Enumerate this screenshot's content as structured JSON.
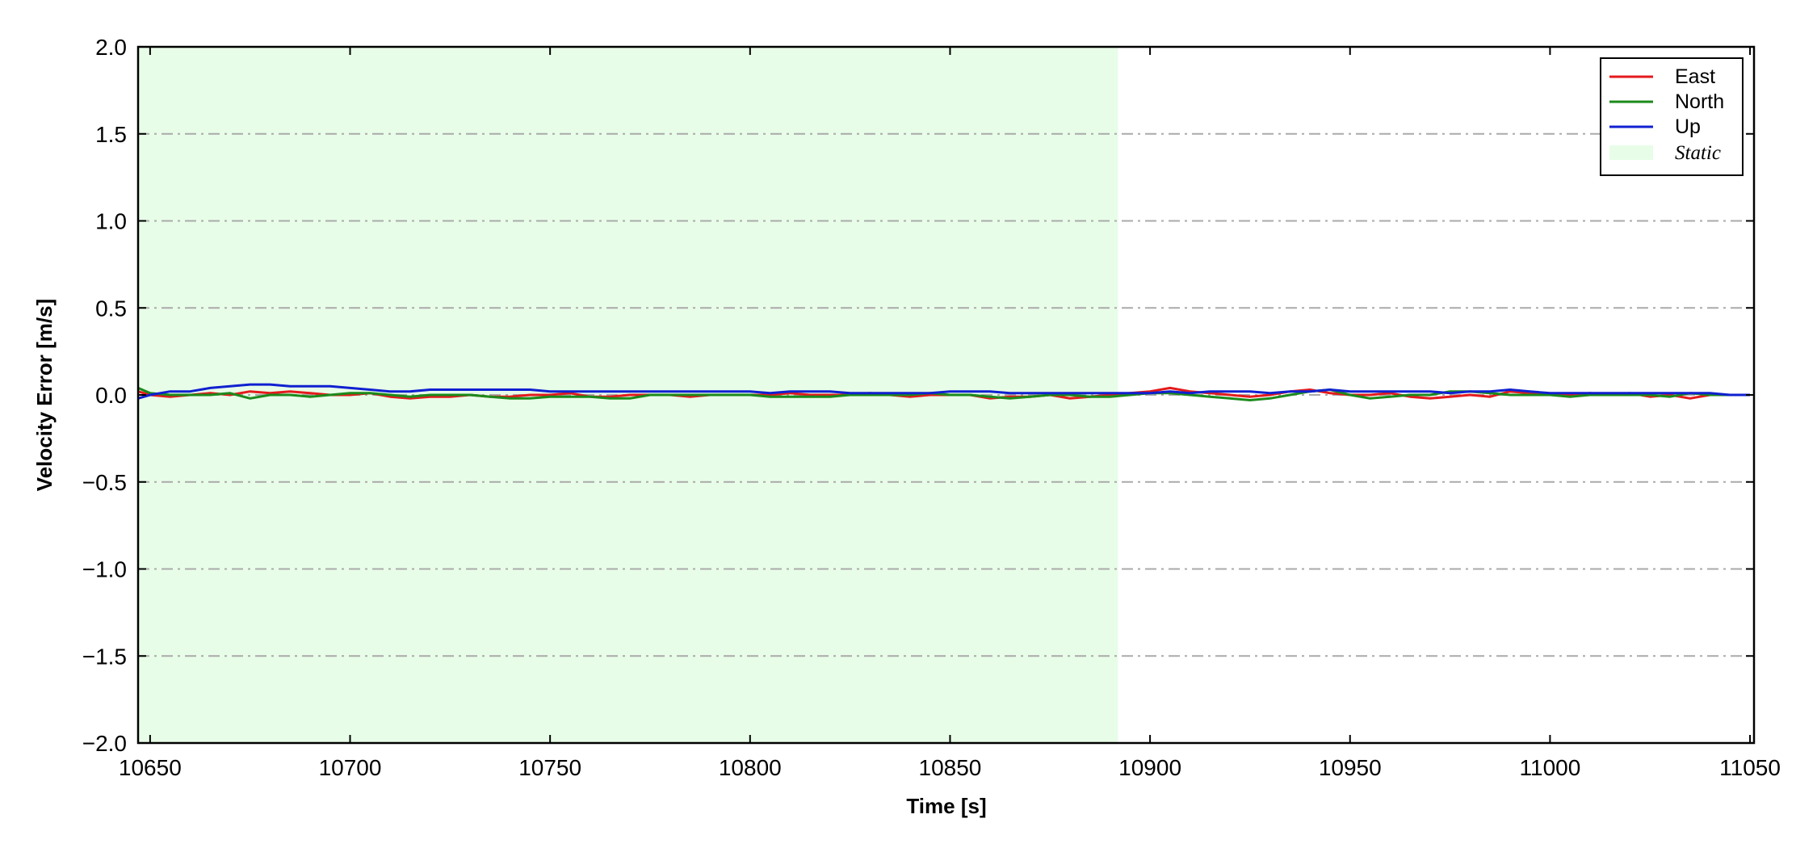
{
  "chart_data": {
    "type": "line",
    "title": "",
    "xlabel": "Time [s]",
    "ylabel": "Velocity Error [m/s]",
    "xlim": [
      10647,
      11051
    ],
    "ylim": [
      -2.0,
      2.0
    ],
    "xticks": [
      10650,
      10700,
      10750,
      10800,
      10850,
      10900,
      10950,
      11000,
      11050
    ],
    "xtick_labels": [
      "10650",
      "10700",
      "10750",
      "10800",
      "10850",
      "10900",
      "10950",
      "11000",
      "11050"
    ],
    "yticks": [
      2.0,
      1.5,
      1.0,
      0.5,
      0.0,
      -0.5,
      -1.0,
      -1.5,
      -2.0
    ],
    "ytick_labels": [
      "2.0",
      "1.5",
      "1.0",
      "0.5",
      "0.0",
      "−0.5",
      "−1.0",
      "−1.5",
      "−2.0"
    ],
    "grid": "horizontal dash-dot",
    "legend_position": "top-right",
    "static_region": {
      "label": "Static",
      "x_start": 10647,
      "x_end": 10892,
      "color": "#e8fde8"
    },
    "x": [
      10647,
      10650,
      10655,
      10660,
      10665,
      10670,
      10675,
      10680,
      10685,
      10690,
      10695,
      10700,
      10705,
      10710,
      10715,
      10720,
      10725,
      10730,
      10735,
      10740,
      10745,
      10750,
      10755,
      10760,
      10765,
      10770,
      10775,
      10780,
      10785,
      10790,
      10795,
      10800,
      10805,
      10810,
      10815,
      10820,
      10825,
      10830,
      10835,
      10840,
      10845,
      10850,
      10855,
      10860,
      10865,
      10870,
      10875,
      10880,
      10885,
      10890,
      10895,
      10900,
      10905,
      10910,
      10915,
      10920,
      10925,
      10930,
      10935,
      10940,
      10945,
      10950,
      10955,
      10960,
      10965,
      10970,
      10975,
      10980,
      10985,
      10990,
      10995,
      11000,
      11005,
      11010,
      11015,
      11020,
      11025,
      11030,
      11035,
      11040,
      11045,
      11050
    ],
    "series": [
      {
        "name": "East",
        "color": "#e41a1c",
        "values": [
          0.02,
          0.0,
          -0.01,
          0.0,
          0.01,
          0.0,
          0.02,
          0.01,
          0.02,
          0.01,
          0.0,
          0.0,
          0.01,
          -0.01,
          -0.02,
          -0.01,
          -0.01,
          0.0,
          -0.01,
          -0.01,
          0.0,
          0.0,
          0.01,
          -0.01,
          -0.01,
          0.0,
          0.0,
          0.0,
          -0.01,
          0.0,
          0.0,
          0.0,
          0.0,
          0.01,
          0.0,
          0.0,
          0.0,
          0.01,
          0.0,
          -0.01,
          0.0,
          0.0,
          0.0,
          -0.02,
          -0.01,
          -0.01,
          0.0,
          -0.02,
          -0.01,
          0.0,
          0.01,
          0.02,
          0.04,
          0.02,
          0.01,
          0.0,
          -0.01,
          0.0,
          0.02,
          0.03,
          0.01,
          0.0,
          0.0,
          0.01,
          -0.01,
          -0.02,
          -0.01,
          0.0,
          -0.01,
          0.02,
          0.01,
          0.0,
          0.0,
          0.01,
          0.0,
          0.01,
          -0.01,
          0.0,
          -0.02,
          0.0,
          0.0,
          0.0
        ]
      },
      {
        "name": "North",
        "color": "#1b8a1b",
        "values": [
          0.04,
          0.01,
          0.0,
          0.0,
          0.0,
          0.01,
          -0.02,
          0.0,
          0.0,
          -0.01,
          0.0,
          0.01,
          0.01,
          0.0,
          -0.01,
          0.0,
          0.0,
          0.0,
          -0.01,
          -0.02,
          -0.02,
          -0.01,
          -0.01,
          -0.01,
          -0.02,
          -0.02,
          0.0,
          0.0,
          0.0,
          0.0,
          0.0,
          0.0,
          -0.01,
          -0.01,
          -0.01,
          -0.01,
          0.0,
          0.0,
          0.0,
          0.0,
          0.01,
          0.0,
          0.0,
          -0.01,
          -0.02,
          -0.01,
          0.0,
          0.0,
          -0.01,
          -0.01,
          0.0,
          0.01,
          0.01,
          0.0,
          -0.01,
          -0.02,
          -0.03,
          -0.02,
          0.0,
          0.02,
          0.03,
          0.0,
          -0.02,
          -0.01,
          0.0,
          0.0,
          0.02,
          0.02,
          0.01,
          0.0,
          0.0,
          0.0,
          -0.01,
          0.0,
          0.0,
          0.0,
          0.0,
          -0.01,
          0.01,
          0.0,
          0.0,
          0.0
        ]
      },
      {
        "name": "Up",
        "color": "#1020d0",
        "values": [
          -0.02,
          0.0,
          0.02,
          0.02,
          0.04,
          0.05,
          0.06,
          0.06,
          0.05,
          0.05,
          0.05,
          0.04,
          0.03,
          0.02,
          0.02,
          0.03,
          0.03,
          0.03,
          0.03,
          0.03,
          0.03,
          0.02,
          0.02,
          0.02,
          0.02,
          0.02,
          0.02,
          0.02,
          0.02,
          0.02,
          0.02,
          0.02,
          0.01,
          0.02,
          0.02,
          0.02,
          0.01,
          0.01,
          0.01,
          0.01,
          0.01,
          0.02,
          0.02,
          0.02,
          0.01,
          0.01,
          0.01,
          0.01,
          0.01,
          0.01,
          0.01,
          0.01,
          0.02,
          0.01,
          0.02,
          0.02,
          0.02,
          0.01,
          0.02,
          0.02,
          0.03,
          0.02,
          0.02,
          0.02,
          0.02,
          0.02,
          0.01,
          0.02,
          0.02,
          0.03,
          0.02,
          0.01,
          0.01,
          0.01,
          0.01,
          0.01,
          0.01,
          0.01,
          0.01,
          0.01,
          0.0,
          0.0
        ]
      }
    ]
  }
}
